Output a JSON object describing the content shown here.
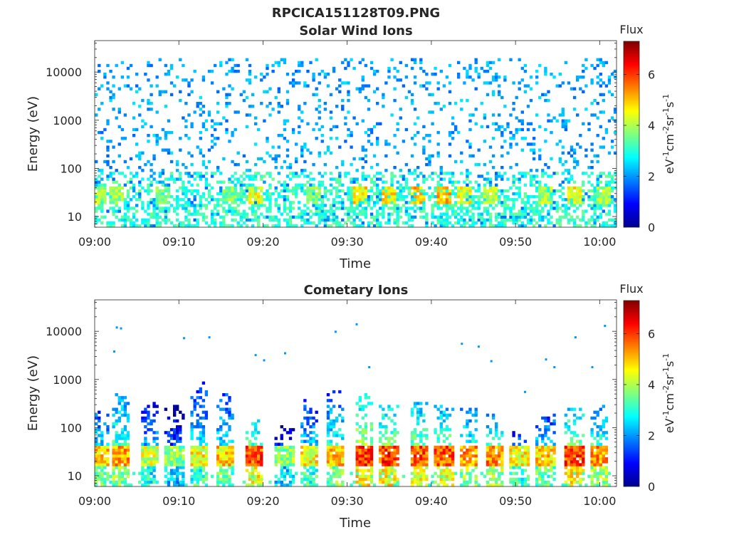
{
  "page_title": "RPCICA151128T09.PNG",
  "chart_data": [
    {
      "type": "heatmap",
      "title": "Solar Wind Ions",
      "xlabel": "Time",
      "ylabel": "Energy (eV)",
      "x_ticks": [
        "09:00",
        "09:10",
        "09:20",
        "09:30",
        "09:40",
        "09:50",
        "10:00"
      ],
      "x_range_min": [
        0,
        62
      ],
      "y_ticks": [
        "10",
        "100",
        "1000",
        "10000"
      ],
      "y_scale": "log",
      "y_range_eV": [
        6,
        45000
      ],
      "colorbar": {
        "label": "Flux",
        "units": "eV-1cm-2sr-1s-1",
        "ticks": [
          "0",
          "2",
          "4",
          "6"
        ],
        "range": [
          0,
          7.3
        ],
        "colormap": "jet"
      },
      "pattern": {
        "background_flux": [
          1.6,
          2.6
        ],
        "background_density": 0.14,
        "background_energy_max_eV": 20000,
        "low_energy_band_eV": [
          6,
          90
        ],
        "low_energy_flux": [
          2.6,
          3.6
        ],
        "band_eV": [
          18,
          45
        ],
        "hot_spots": [
          {
            "t_min": 0.5,
            "flux": 4.6
          },
          {
            "t_min": 2.5,
            "flux": 4.5
          },
          {
            "t_min": 8.0,
            "flux": 4.2
          },
          {
            "t_min": 16.0,
            "flux": 4.2
          },
          {
            "t_min": 19.0,
            "flux": 5.0
          },
          {
            "t_min": 26.0,
            "flux": 4.4
          },
          {
            "t_min": 31.5,
            "flux": 5.3
          },
          {
            "t_min": 35.0,
            "flux": 5.3
          },
          {
            "t_min": 38.5,
            "flux": 5.6
          },
          {
            "t_min": 41.5,
            "flux": 5.6
          },
          {
            "t_min": 44.0,
            "flux": 5.0
          },
          {
            "t_min": 47.0,
            "flux": 4.7
          },
          {
            "t_min": 53.5,
            "flux": 4.6
          },
          {
            "t_min": 57.0,
            "flux": 5.1
          },
          {
            "t_min": 60.5,
            "flux": 4.6
          }
        ]
      }
    },
    {
      "type": "heatmap",
      "title": "Cometary Ions",
      "xlabel": "Time",
      "ylabel": "Energy (eV)",
      "x_ticks": [
        "09:00",
        "09:10",
        "09:20",
        "09:30",
        "09:40",
        "09:50",
        "10:00"
      ],
      "x_range_min": [
        0,
        62
      ],
      "y_ticks": [
        "10",
        "100",
        "1000",
        "10000"
      ],
      "y_scale": "log",
      "y_range_eV": [
        6,
        45000
      ],
      "colorbar": {
        "label": "Flux",
        "units": "eV-1cm-2sr-1s-1",
        "ticks": [
          "0",
          "2",
          "4",
          "6"
        ],
        "range": [
          0,
          7.3
        ],
        "colormap": "jet"
      },
      "pattern": {
        "band_eV": [
          15,
          45
        ],
        "bursts": [
          {
            "t_min": 0.5,
            "top_eV": 250,
            "flux": 5.6
          },
          {
            "t_min": 3.0,
            "top_eV": 700,
            "flux": 6.0
          },
          {
            "t_min": 6.5,
            "top_eV": 400,
            "flux": 5.0
          },
          {
            "t_min": 9.5,
            "top_eV": 300,
            "flux": 4.5
          },
          {
            "t_min": 12.5,
            "top_eV": 900,
            "flux": 5.3
          },
          {
            "t_min": 15.5,
            "top_eV": 500,
            "flux": 5.6
          },
          {
            "t_min": 19.0,
            "top_eV": 150,
            "flux": 6.6
          },
          {
            "t_min": 22.5,
            "top_eV": 120,
            "flux": 4.6
          },
          {
            "t_min": 25.5,
            "top_eV": 400,
            "flux": 5.3
          },
          {
            "t_min": 28.5,
            "top_eV": 600,
            "flux": 5.7
          },
          {
            "t_min": 32.0,
            "top_eV": 500,
            "flux": 6.8
          },
          {
            "t_min": 35.0,
            "top_eV": 300,
            "flux": 6.7
          },
          {
            "t_min": 38.5,
            "top_eV": 350,
            "flux": 6.5
          },
          {
            "t_min": 41.5,
            "top_eV": 300,
            "flux": 6.5
          },
          {
            "t_min": 44.5,
            "top_eV": 250,
            "flux": 6.0
          },
          {
            "t_min": 47.5,
            "top_eV": 200,
            "flux": 6.2
          },
          {
            "t_min": 50.5,
            "top_eV": 80,
            "flux": 5.3
          },
          {
            "t_min": 53.5,
            "top_eV": 200,
            "flux": 5.6
          },
          {
            "t_min": 57.0,
            "top_eV": 250,
            "flux": 6.7
          },
          {
            "t_min": 60.0,
            "top_eV": 300,
            "flux": 6.1
          }
        ],
        "sparse_high_energy": [
          {
            "t_min": 2.5,
            "e_eV": 12000
          },
          {
            "t_min": 3.0,
            "e_eV": 11500
          },
          {
            "t_min": 2.2,
            "e_eV": 3800
          },
          {
            "t_min": 10.5,
            "e_eV": 7200
          },
          {
            "t_min": 13.5,
            "e_eV": 7500
          },
          {
            "t_min": 19.0,
            "e_eV": 3200
          },
          {
            "t_min": 20.0,
            "e_eV": 2500
          },
          {
            "t_min": 22.5,
            "e_eV": 3500
          },
          {
            "t_min": 28.5,
            "e_eV": 9800
          },
          {
            "t_min": 31.0,
            "e_eV": 14000
          },
          {
            "t_min": 32.5,
            "e_eV": 1800
          },
          {
            "t_min": 43.5,
            "e_eV": 5500
          },
          {
            "t_min": 45.5,
            "e_eV": 4800
          },
          {
            "t_min": 47.0,
            "e_eV": 2400
          },
          {
            "t_min": 53.5,
            "e_eV": 2600
          },
          {
            "t_min": 54.5,
            "e_eV": 1800
          },
          {
            "t_min": 57.0,
            "e_eV": 7500
          },
          {
            "t_min": 59.0,
            "e_eV": 1800
          },
          {
            "t_min": 60.5,
            "e_eV": 13000
          },
          {
            "t_min": 51.0,
            "e_eV": 550
          }
        ]
      }
    }
  ]
}
